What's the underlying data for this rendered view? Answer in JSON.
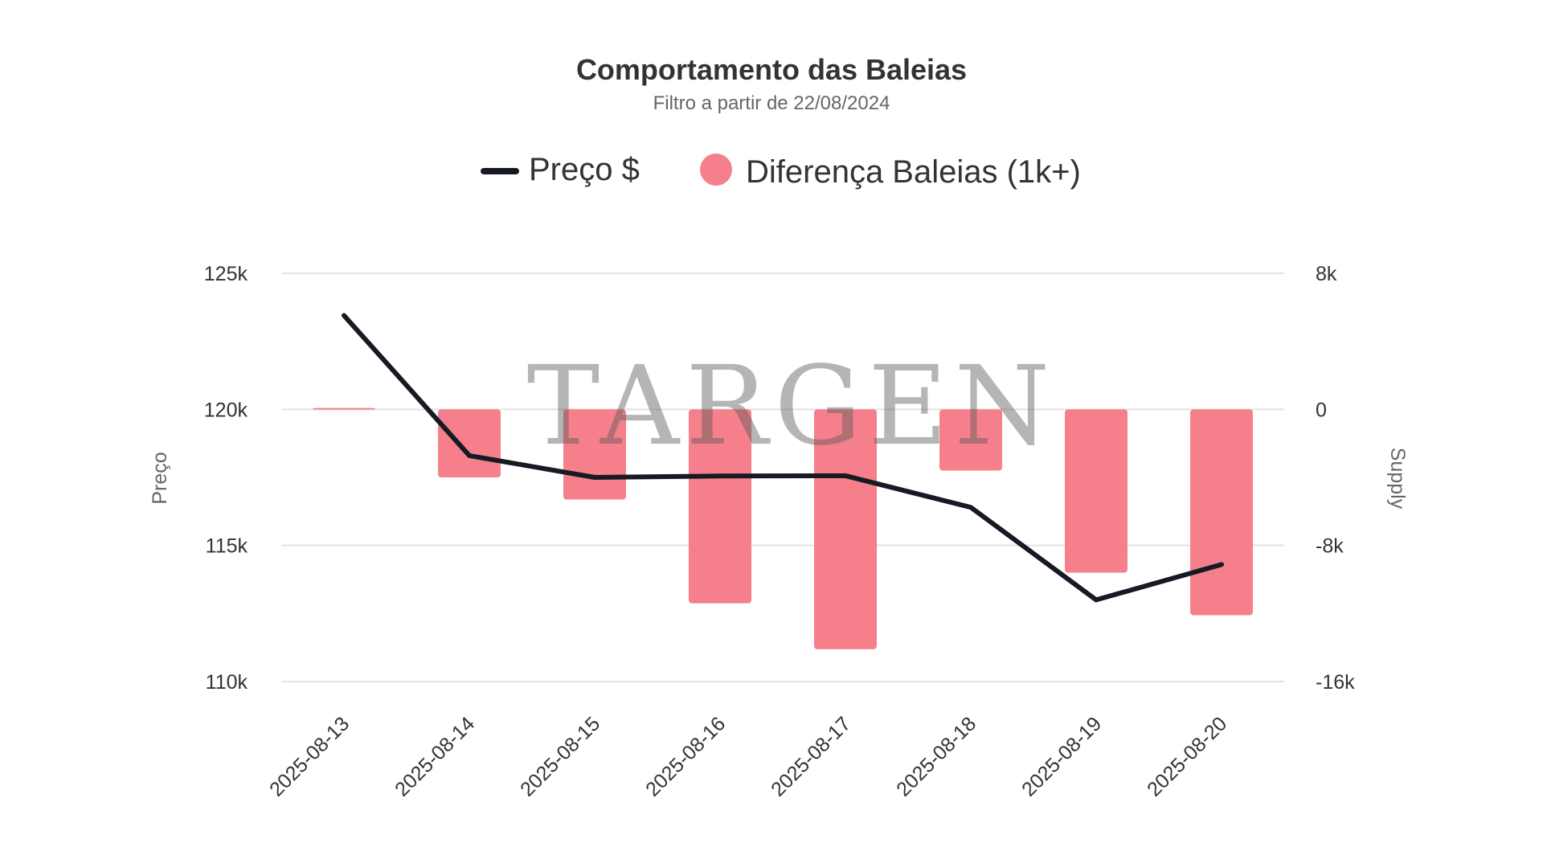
{
  "chart_data": {
    "type": "bar",
    "title": "Comportamento das Baleias",
    "subtitle": "Filtro a partir de 22/08/2024",
    "watermark": "TARGEN",
    "categories": [
      "2025-08-13",
      "2025-08-14",
      "2025-08-15",
      "2025-08-16",
      "2025-08-17",
      "2025-08-18",
      "2025-08-19",
      "2025-08-20"
    ],
    "series": [
      {
        "name": "Preço $",
        "type": "line",
        "axis": "left",
        "color": "#161a24",
        "values": [
          123450,
          118300,
          117500,
          117550,
          117560,
          116400,
          113000,
          114300
        ]
      },
      {
        "name": "Diferença Baleias (1k+)",
        "type": "bar",
        "axis": "right",
        "color": "#f5808b",
        "values": [
          80,
          -4000,
          -5300,
          -11400,
          -14100,
          -3600,
          -9600,
          -12100
        ]
      }
    ],
    "ylabel": "Preço",
    "ylabel_right": "Supply",
    "yticks": [
      "125k",
      "120k",
      "115k",
      "110k"
    ],
    "yticks_right": [
      "8k",
      "0",
      "-8k",
      "-16k"
    ],
    "ylim": [
      110000,
      125000
    ],
    "ylim_right": [
      -16000,
      8000
    ],
    "grid": true,
    "legend_position": "top-center"
  }
}
